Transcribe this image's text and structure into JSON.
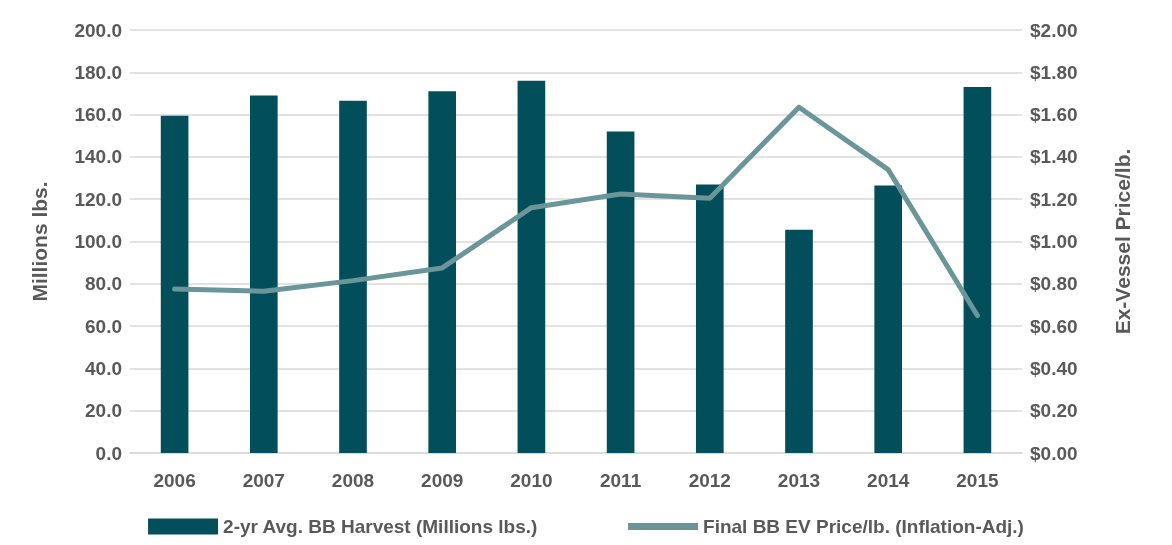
{
  "chart_data": {
    "type": "bar",
    "categories": [
      "2006",
      "2007",
      "2008",
      "2009",
      "2010",
      "2011",
      "2012",
      "2013",
      "2014",
      "2015"
    ],
    "ylabel": "Millions lbs.",
    "y2label": "Ex-Vessel Price/lb.",
    "series": [
      {
        "name": "2-yr Avg. BB Harvest (Millions lbs.)",
        "color": "#024e5a",
        "values": [
          159.5,
          169,
          166.5,
          171,
          176,
          152,
          127,
          105.5,
          126.5,
          173
        ]
      },
      {
        "name": "Final BB EV Price/lb. (Inflation-Adj.)",
        "type": "line",
        "axis": "y2",
        "color": "#6a9599",
        "values": [
          0.775,
          0.765,
          0.815,
          0.875,
          1.16,
          1.225,
          1.205,
          1.635,
          1.34,
          0.65
        ]
      }
    ],
    "ylim": [
      0,
      200
    ],
    "yticks": [
      {
        "value": 0,
        "label": "0.0"
      },
      {
        "value": 20,
        "label": "20.0"
      },
      {
        "value": 40,
        "label": "40.0"
      },
      {
        "value": 60,
        "label": "60.0"
      },
      {
        "value": 80,
        "label": "80.0"
      },
      {
        "value": 100,
        "label": "100.0"
      },
      {
        "value": 120,
        "label": "120.0"
      },
      {
        "value": 140,
        "label": "140.0"
      },
      {
        "value": 160,
        "label": "160.0"
      },
      {
        "value": 180,
        "label": "180.0"
      },
      {
        "value": 200,
        "label": "200.0"
      }
    ],
    "y2lim": [
      0,
      2
    ],
    "y2ticks": [
      {
        "value": 0,
        "label": "$0.00"
      },
      {
        "value": 0.2,
        "label": "$0.20"
      },
      {
        "value": 0.4,
        "label": "$0.40"
      },
      {
        "value": 0.6,
        "label": "$0.60"
      },
      {
        "value": 0.8,
        "label": "$0.80"
      },
      {
        "value": 1,
        "label": "$1.00"
      },
      {
        "value": 1.2,
        "label": "$1.20"
      },
      {
        "value": 1.4,
        "label": "$1.40"
      },
      {
        "value": 1.6,
        "label": "$1.60"
      },
      {
        "value": 1.8,
        "label": "$1.80"
      },
      {
        "value": 2,
        "label": "$2.00"
      }
    ],
    "grid": "y",
    "legend": "bottom",
    "marker": "none",
    "line_style": "solid"
  }
}
